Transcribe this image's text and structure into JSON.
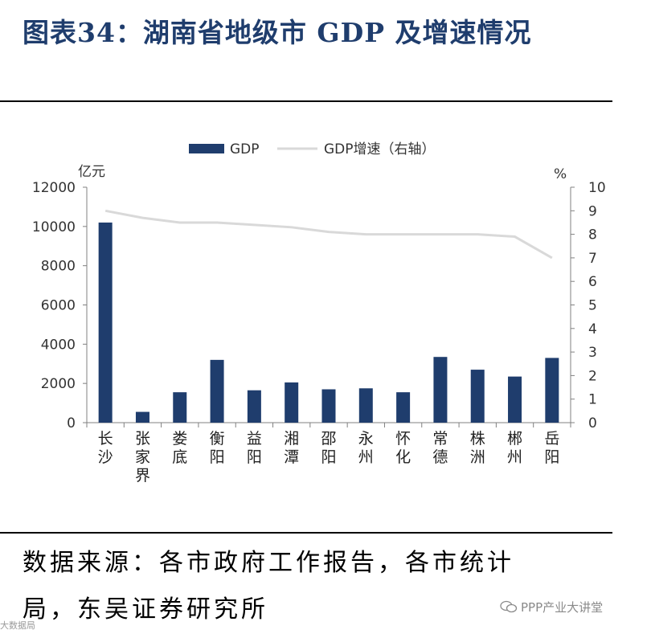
{
  "header": {
    "title": "图表34：湖南省地级市 GDP 及增速情况"
  },
  "footer": {
    "source_line1": "数据来源：各市政府工作报告，各市统计",
    "source_line2": "局，东吴证券研究所",
    "watermark_left": "大数据局",
    "watermark_right": "PPP产业大讲堂"
  },
  "chart_data": {
    "type": "bar",
    "title": "湖南省地级市GDP及增速情况",
    "left_unit": "亿元",
    "right_unit": "%",
    "categories": [
      "长沙",
      "张家界",
      "娄底",
      "衡阳",
      "益阳",
      "湘潭",
      "邵阳",
      "永州",
      "怀化",
      "常德",
      "株洲",
      "郴州",
      "岳阳"
    ],
    "series": [
      {
        "name": "GDP",
        "type": "bar",
        "axis": "left",
        "color": "#1f3d6d",
        "values": [
          10200,
          550,
          1550,
          3200,
          1650,
          2050,
          1700,
          1750,
          1550,
          3350,
          2700,
          2350,
          3300
        ]
      },
      {
        "name": "GDP增速（右轴）",
        "type": "line",
        "axis": "right",
        "color": "#d9d9d9",
        "values": [
          9.0,
          8.7,
          8.5,
          8.5,
          8.4,
          8.3,
          8.1,
          8.0,
          8.0,
          8.0,
          8.0,
          7.9,
          7.0
        ]
      }
    ],
    "ylim": [
      0,
      12000
    ],
    "y_ticks": [
      "0",
      "2000",
      "4000",
      "6000",
      "8000",
      "10000",
      "12000"
    ],
    "y2lim": [
      0,
      10
    ],
    "y2_ticks": [
      "0",
      "1",
      "2",
      "3",
      "4",
      "5",
      "6",
      "7",
      "8",
      "9",
      "10"
    ],
    "legend": "top-center"
  }
}
